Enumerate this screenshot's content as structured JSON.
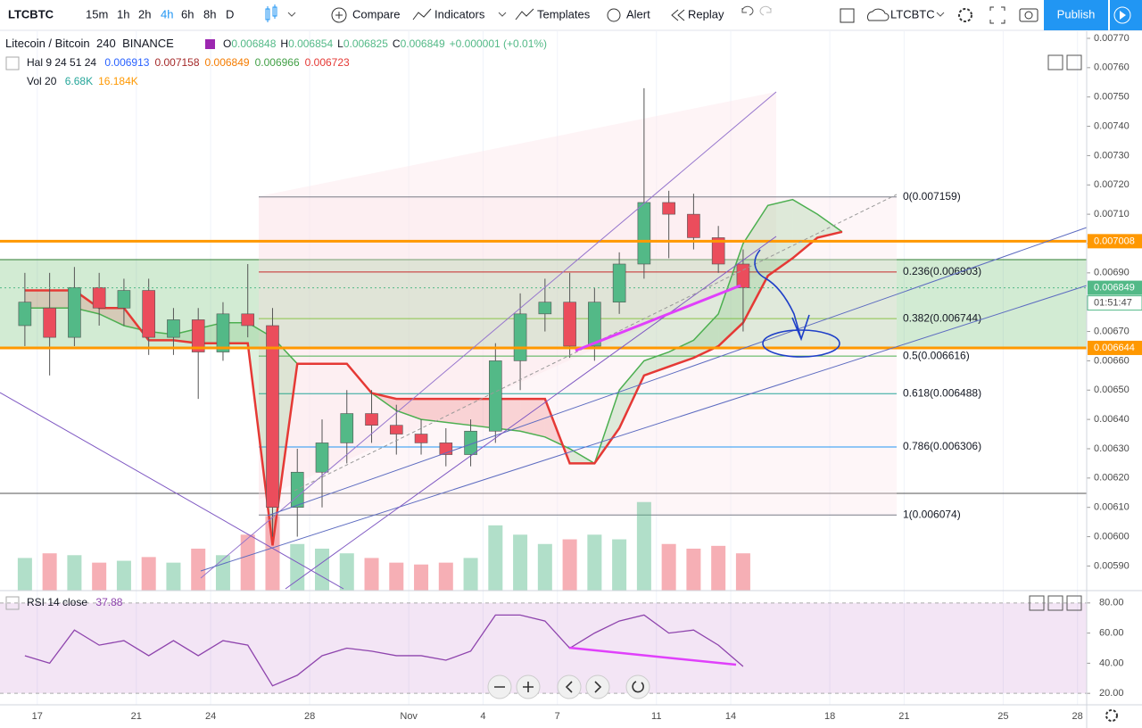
{
  "toolbar": {
    "symbol": "LTCBTC",
    "intervals": [
      "15m",
      "1h",
      "2h",
      "4h",
      "6h",
      "8h",
      "D"
    ],
    "active_interval": 3,
    "buttons": [
      "Compare",
      "Indicators",
      "Templates",
      "Alert",
      "Replay"
    ],
    "symbol_search": "LTCBTC",
    "publish": "Publish"
  },
  "legend": {
    "name": "Litecoin / Bitcoin",
    "interval": "240",
    "exchange": "BINANCE",
    "ohlc": [
      {
        "key": "O",
        "value": 0.006848
      },
      {
        "key": "H",
        "value": 0.006854
      },
      {
        "key": "L",
        "value": 0.006825
      },
      {
        "key": "C",
        "value": 0.006849
      }
    ],
    "change": "+0.000001 (+0.01%)",
    "indicator": {
      "name": "Hal 9 24 51 24",
      "values": [
        {
          "value": 0.006913,
          "color": "#2962ff"
        },
        {
          "value": 0.007158,
          "color": "#a52a2a"
        },
        {
          "value": 0.006849,
          "color": "#f57c00"
        },
        {
          "value": 0.006966,
          "color": "#43a047"
        },
        {
          "value": 0.006723,
          "color": "#e53935"
        }
      ]
    },
    "volume": {
      "name": "Vol 20",
      "values": [
        {
          "value": "6.68K",
          "color": "#26a69a"
        },
        {
          "value": "16.184K",
          "color": "#ff9800"
        }
      ]
    }
  },
  "countdown": "01:51:47",
  "chart_data": [
    {
      "type": "candlestick",
      "categories": [
        null,
        "17",
        null,
        null,
        null,
        "21",
        null,
        null,
        "24",
        null,
        null,
        null,
        "28",
        null,
        null,
        null,
        "Nov",
        null,
        null,
        "4",
        null,
        null,
        "7",
        null,
        null,
        null,
        "11",
        null,
        null,
        "14",
        null,
        null,
        null,
        "18",
        null,
        null,
        "21",
        null,
        null,
        null,
        "25",
        null,
        null,
        "28"
      ],
      "open": [
        0.00672,
        0.00678,
        0.00668,
        0.00685,
        0.00678,
        0.00684,
        0.00668,
        0.00674,
        0.00663,
        0.00676,
        0.00672,
        0.0061,
        0.00622,
        0.00632,
        0.00642,
        0.00638,
        0.00635,
        0.00632,
        0.00628,
        0.00636,
        0.0066,
        0.00676,
        0.0068,
        0.00665,
        0.0068,
        0.00693,
        0.00714,
        0.0071,
        0.00702,
        0.00693,
        null,
        null,
        null,
        null,
        null,
        null,
        null,
        null,
        null,
        null,
        null,
        null,
        null,
        null
      ],
      "high": [
        0.0069,
        0.0069,
        0.00692,
        0.0069,
        0.00688,
        0.00688,
        0.00678,
        0.00678,
        0.0068,
        0.00693,
        0.00678,
        0.0063,
        0.0064,
        0.0065,
        0.0065,
        0.00645,
        0.0064,
        0.00637,
        0.0064,
        0.00666,
        0.00683,
        0.00688,
        0.0069,
        0.00685,
        0.00697,
        0.00753,
        0.00718,
        0.00717,
        0.00706,
        0.00698,
        null,
        null,
        null,
        null,
        null,
        null,
        null,
        null,
        null,
        null,
        null,
        null,
        null,
        null
      ],
      "low": [
        0.00665,
        0.00655,
        0.00665,
        0.00672,
        0.00672,
        0.00662,
        0.00662,
        0.00647,
        0.0066,
        0.00668,
        0.006,
        0.006,
        0.0061,
        0.00625,
        0.00632,
        0.00628,
        0.00628,
        0.00624,
        0.00624,
        0.00632,
        0.0065,
        0.0067,
        0.00661,
        0.0066,
        0.00676,
        0.00688,
        0.00695,
        0.00698,
        0.0069,
        0.0067,
        null,
        null,
        null,
        null,
        null,
        null,
        null,
        null,
        null,
        null,
        null,
        null,
        null,
        null
      ],
      "close": [
        0.0068,
        0.00668,
        0.00685,
        0.00678,
        0.00684,
        0.00668,
        0.00674,
        0.00663,
        0.00676,
        0.00672,
        0.0061,
        0.00622,
        0.00632,
        0.00642,
        0.00638,
        0.00635,
        0.00632,
        0.00628,
        0.00636,
        0.0066,
        0.00676,
        0.0068,
        0.00665,
        0.0068,
        0.00693,
        0.00714,
        0.0071,
        0.00702,
        0.00693,
        0.006849,
        null,
        null,
        null,
        null,
        null,
        null,
        null,
        null,
        null,
        null,
        null,
        null,
        null,
        null
      ],
      "volume": [
        35,
        40,
        38,
        30,
        32,
        36,
        30,
        45,
        38,
        60,
        80,
        50,
        45,
        40,
        35,
        30,
        28,
        30,
        35,
        70,
        60,
        50,
        55,
        60,
        55,
        95,
        50,
        45,
        48,
        40,
        null,
        null,
        null,
        null,
        null,
        null,
        null,
        null,
        null,
        null,
        null,
        null,
        null,
        null
      ],
      "volume_ylim": [
        0,
        600
      ],
      "up_color": "#53b987",
      "down_color": "#eb4d5c",
      "cloud": [
        {
          "color": "#4caf50",
          "values": [
            0.00678,
            0.00678,
            0.00678,
            0.00676,
            0.00672,
            0.0067,
            0.00669,
            0.00671,
            0.00673,
            0.00673,
            0.00668,
            0.00659,
            0.00659,
            0.00659,
            0.00649,
            0.00643,
            0.0064,
            0.00639,
            0.00638,
            0.00637,
            0.00636,
            0.00634,
            0.0063,
            0.00625,
            0.0065,
            0.0066,
            0.00663,
            0.00667,
            0.00676,
            0.007,
            0.00713,
            0.00715,
            0.0071,
            0.00704,
            null,
            null,
            null,
            null,
            null,
            null,
            null,
            null,
            null,
            null
          ]
        },
        {
          "color": "#e53935",
          "values": [
            0.00684,
            0.00684,
            0.00684,
            0.00678,
            0.00678,
            0.00667,
            0.00667,
            0.00666,
            0.00666,
            0.00666,
            0.00597,
            0.00659,
            0.00659,
            0.00659,
            0.00649,
            0.00647,
            0.00647,
            0.00647,
            0.00647,
            0.00647,
            0.00647,
            0.00647,
            0.00625,
            0.00625,
            0.00637,
            0.00655,
            0.00658,
            0.00661,
            0.00665,
            0.00673,
            0.00689,
            0.00695,
            0.00702,
            0.00704,
            null,
            null,
            null,
            null,
            null,
            null,
            null,
            null,
            null,
            null
          ]
        }
      ],
      "fib_levels": [
        {
          "value": 0.007159,
          "label": "0(0.007159)",
          "color": "#787b86"
        },
        {
          "value": 0.006903,
          "label": "0.236(0.006903)",
          "color": "#c62828"
        },
        {
          "value": 0.006744,
          "label": "0.382(0.006744)",
          "color": "#8bc34a"
        },
        {
          "value": 0.006616,
          "label": "0.5(0.006616)",
          "color": "#4caf50"
        },
        {
          "value": 0.006488,
          "label": "0.618(0.006488)",
          "color": "#26a69a"
        },
        {
          "value": 0.006306,
          "label": "0.786(0.006306)",
          "color": "#2196f3"
        },
        {
          "value": 0.006074,
          "label": "1(0.006074)",
          "color": "#787b86"
        }
      ],
      "price_lines": [
        {
          "value": 0.007008,
          "color": "#ff9800",
          "style": "solid"
        },
        {
          "value": 0.006849,
          "color": "#53b987",
          "style": "dotted"
        },
        {
          "value": 0.006644,
          "color": "#ff9800",
          "style": "solid"
        }
      ],
      "ylim": [
        0.005816,
        0.0077243
      ],
      "yticks": [
        {
          "value": 0.0059,
          "label": "0.00590"
        },
        {
          "value": 0.006,
          "label": "0.00600"
        },
        {
          "value": 0.0061,
          "label": "0.00610"
        },
        {
          "value": 0.0062,
          "label": "0.00620"
        },
        {
          "value": 0.0063,
          "label": "0.00630"
        },
        {
          "value": 0.0064,
          "label": "0.00640"
        },
        {
          "value": 0.0065,
          "label": "0.00650"
        },
        {
          "value": 0.0066,
          "label": "0.00660"
        },
        {
          "value": 0.0067,
          "label": "0.00670"
        },
        {
          "value": 0.0068,
          "label": "0.00680"
        },
        {
          "value": 0.0069,
          "label": "0.00690"
        },
        {
          "value": 0.007,
          "label": "0.00700"
        },
        {
          "value": 0.0071,
          "label": "0.00710"
        },
        {
          "value": 0.0072,
          "label": "0.00720"
        },
        {
          "value": 0.0073,
          "label": "0.00730"
        },
        {
          "value": 0.0074,
          "label": "0.00740"
        },
        {
          "value": 0.0075,
          "label": "0.00750"
        },
        {
          "value": 0.0076,
          "label": "0.00760"
        },
        {
          "value": 0.0077,
          "label": "0.00770"
        }
      ],
      "grid": true
    },
    {
      "type": "line",
      "title": "RSI 14 close",
      "color": "#8e44ad",
      "values": [
        45,
        40,
        62,
        52,
        55,
        45,
        55,
        45,
        55,
        52,
        25,
        32,
        45,
        50,
        48,
        45,
        45,
        42,
        48,
        72,
        72,
        68,
        50,
        60,
        68,
        72,
        60,
        62,
        52,
        37.88,
        null,
        null,
        null,
        null,
        null,
        null,
        null,
        null,
        null,
        null,
        null,
        null,
        null,
        null
      ],
      "band": [
        20,
        80
      ],
      "band_color": "#9c27b0",
      "ylim": [
        12.4,
        87.6
      ],
      "yticks": [
        {
          "value": 80,
          "label": "80.00"
        },
        {
          "value": 60,
          "label": "60.00"
        },
        {
          "value": 40,
          "label": "40.00"
        },
        {
          "value": 20,
          "label": "20.00"
        }
      ]
    }
  ]
}
